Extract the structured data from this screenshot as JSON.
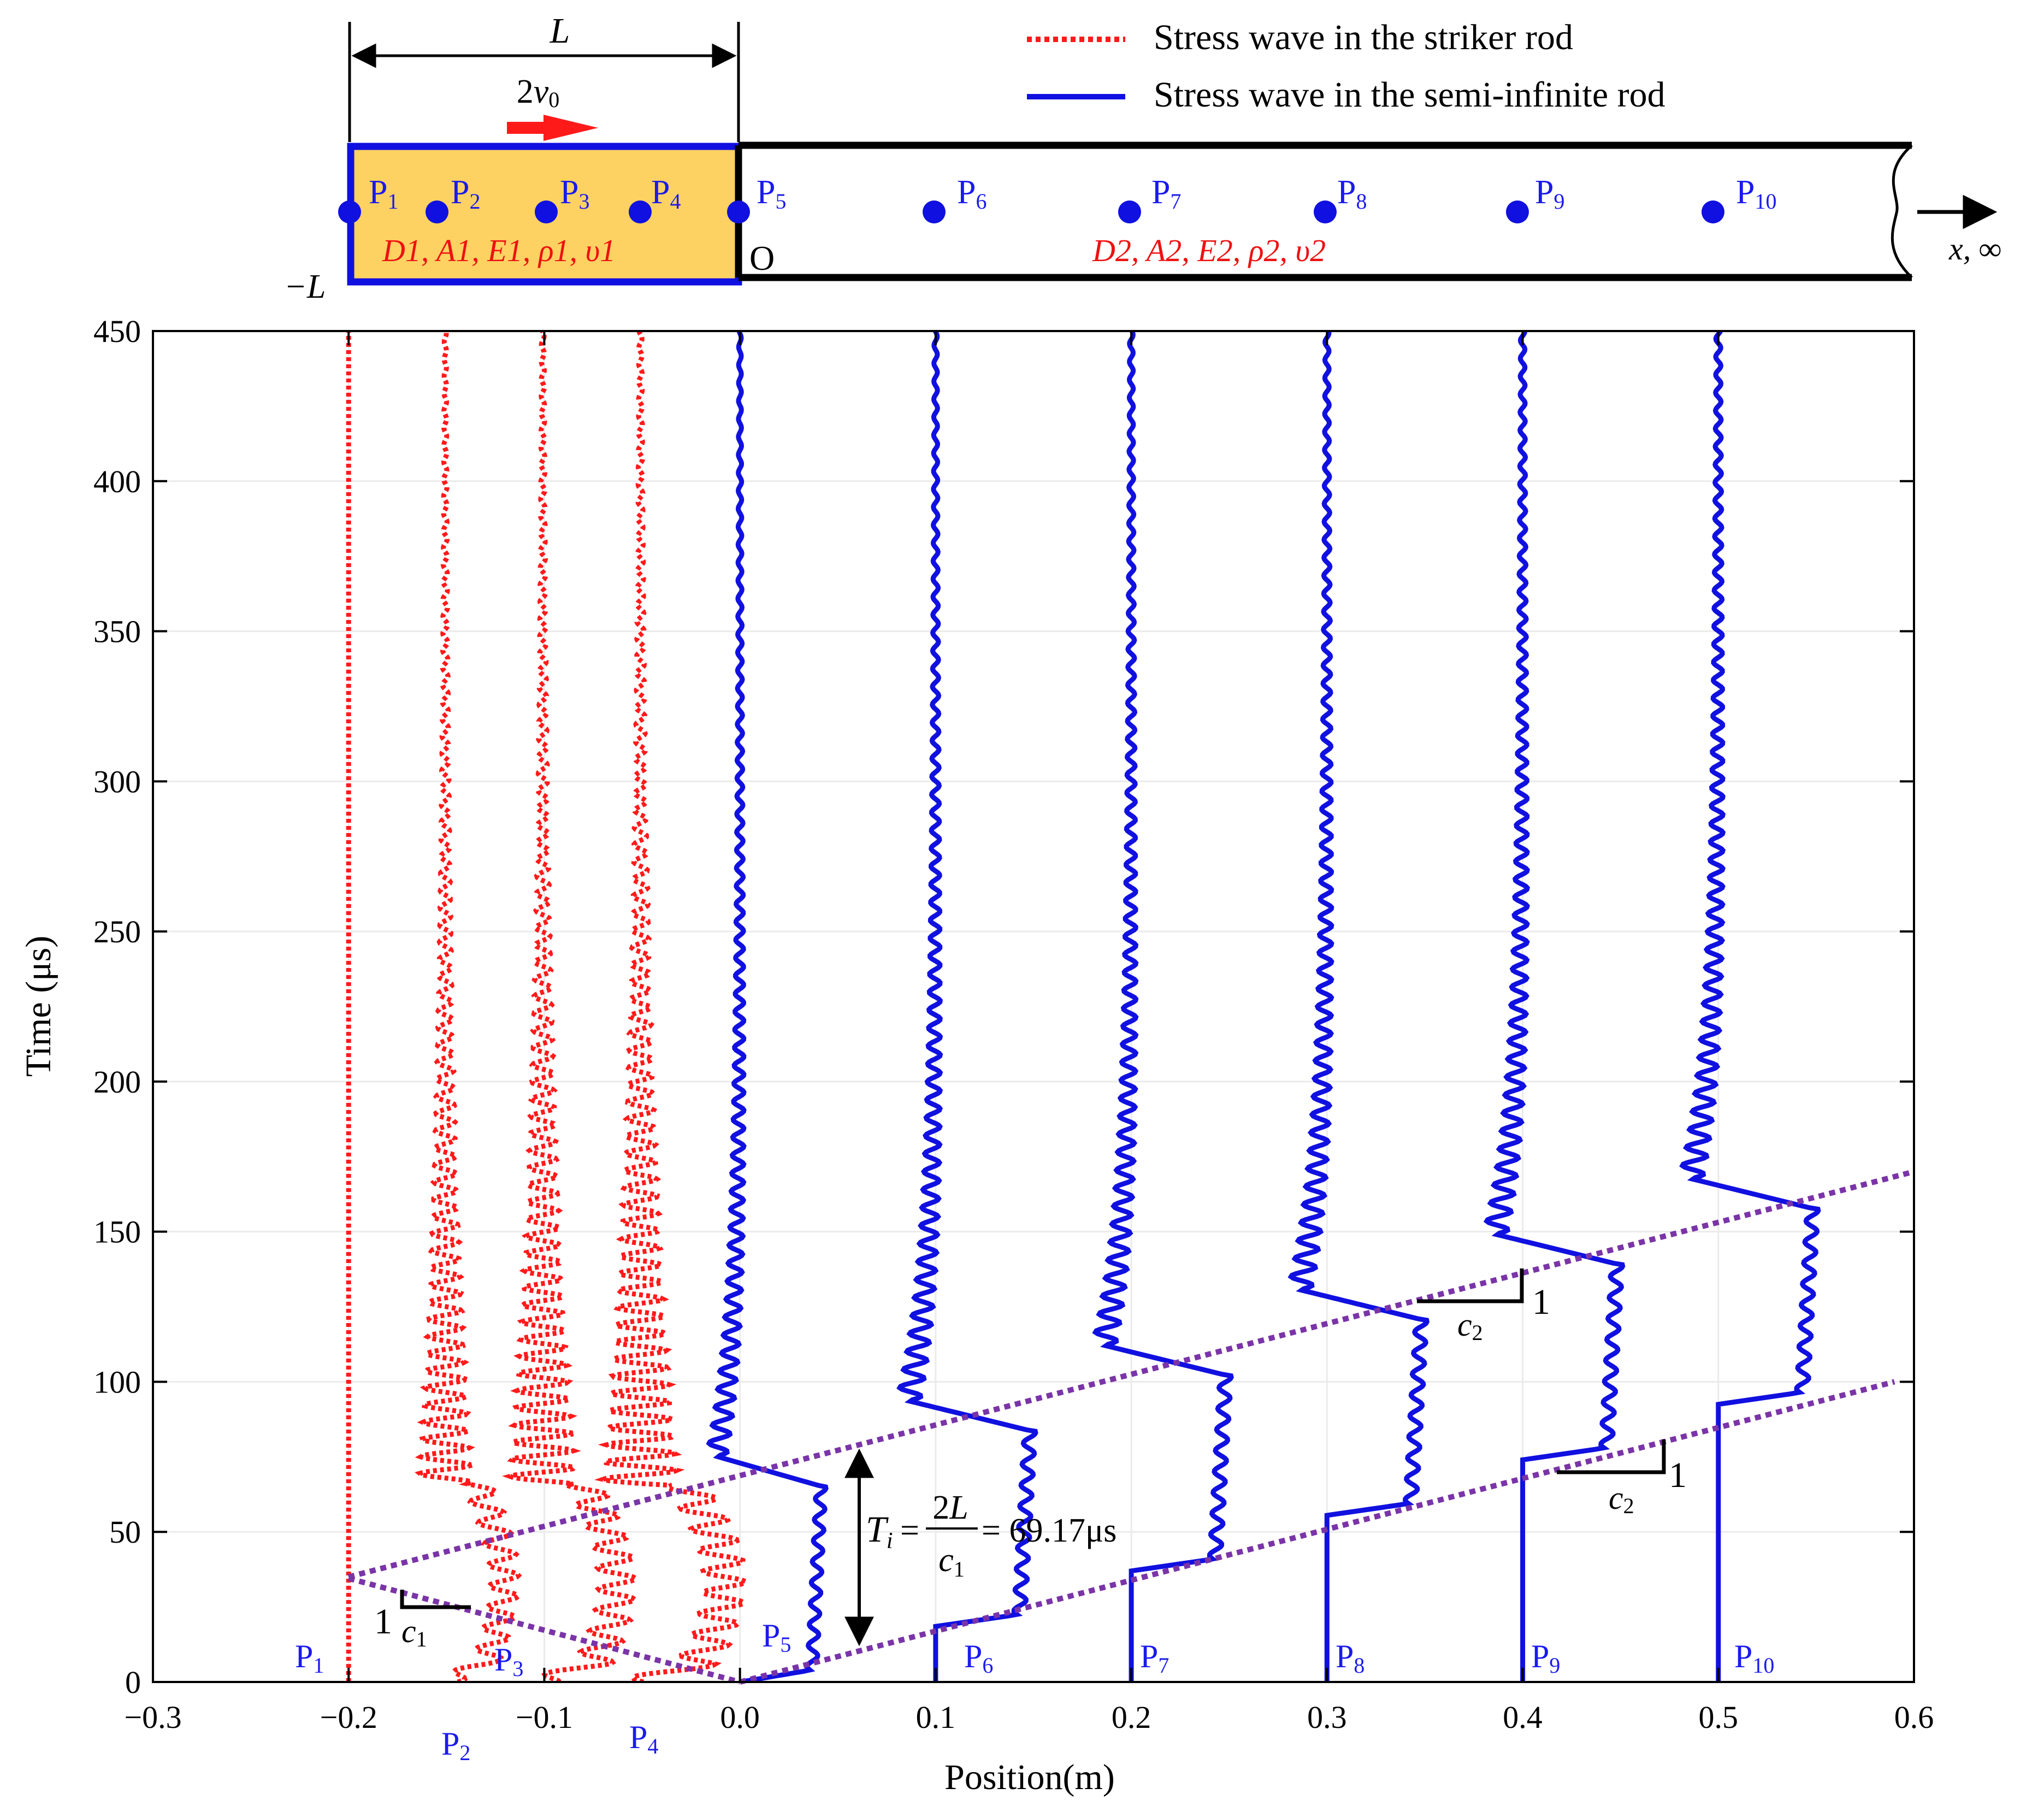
{
  "colors": {
    "striker_wave": "#ff1a1a",
    "semi_wave": "#1010e0",
    "characteristic": "#7a34a8",
    "striker_fill": "#fdd262",
    "point_label": "#1a1aee",
    "material_label": "#ee1111",
    "grid": "#ebebeb",
    "arrow_red": "#ff1a1a"
  },
  "legend": {
    "striker": "Stress wave in the striker rod",
    "semi": "Stress wave in the semi-infinite rod"
  },
  "schematic": {
    "length_label": "L",
    "velocity_label": "2v0",
    "velocity_sub": "0",
    "neg_length_label": "−L",
    "origin_label": "O",
    "axis_label": "x, ∞",
    "striker_props": "D1, A1, E1, ρ1, υ1",
    "semi_props": "D2, A2, E2, ρ2, υ2",
    "points": [
      "P1",
      "P2",
      "P3",
      "P4",
      "P5",
      "P6",
      "P7",
      "P8",
      "P9",
      "P10"
    ]
  },
  "annotations": {
    "period_formula": "Ti = 2L / c1 = 69.17 μs",
    "period_value": "= 69.17μs",
    "slope_striker": "c1",
    "slope_semi_upper": "c2",
    "slope_semi_lower": "c2",
    "slope_one": "1"
  },
  "chart_data": {
    "type": "line",
    "xlabel": "Position(m)",
    "ylabel": "Time (μs)",
    "xlim": [
      -0.3,
      0.6
    ],
    "ylim": [
      0,
      450
    ],
    "xticks": [
      "−0.3",
      "−0.2",
      "−0.1",
      "0.0",
      "0.1",
      "0.2",
      "0.3",
      "0.4",
      "0.5",
      "0.6"
    ],
    "yticks": [
      "0",
      "50",
      "100",
      "150",
      "200",
      "250",
      "300",
      "350",
      "400",
      "450"
    ],
    "grid": true,
    "legend_position": "top-right",
    "series": [
      {
        "name": "Stress wave in the striker rod",
        "points": [
          "P1",
          "P2",
          "P3",
          "P4"
        ],
        "baseline_positions_m": [
          -0.2,
          -0.15,
          -0.1,
          -0.05
        ],
        "max_deflection_m": [
          0.0,
          0.03,
          0.038,
          0.043
        ]
      },
      {
        "name": "Stress wave in the semi-infinite rod",
        "points": [
          "P5",
          "P6",
          "P7",
          "P8",
          "P9",
          "P10"
        ],
        "baseline_positions_m": [
          0.0,
          0.1,
          0.2,
          0.3,
          0.4,
          0.5
        ],
        "max_deflection_m": [
          0.043,
          0.05,
          0.05,
          0.05,
          0.05,
          0.05
        ],
        "arrival_time_us": [
          0,
          18.5,
          37,
          55.5,
          74,
          92.5
        ]
      }
    ],
    "characteristic_lines": [
      {
        "from": [
          -0.2,
          34.5
        ],
        "to": [
          0.0,
          0
        ]
      },
      {
        "from": [
          -0.2,
          35
        ],
        "to": [
          0.6,
          170
        ]
      },
      {
        "from": [
          0.0,
          0
        ],
        "to": [
          0.59,
          100
        ]
      }
    ],
    "period_us": 69.17
  }
}
